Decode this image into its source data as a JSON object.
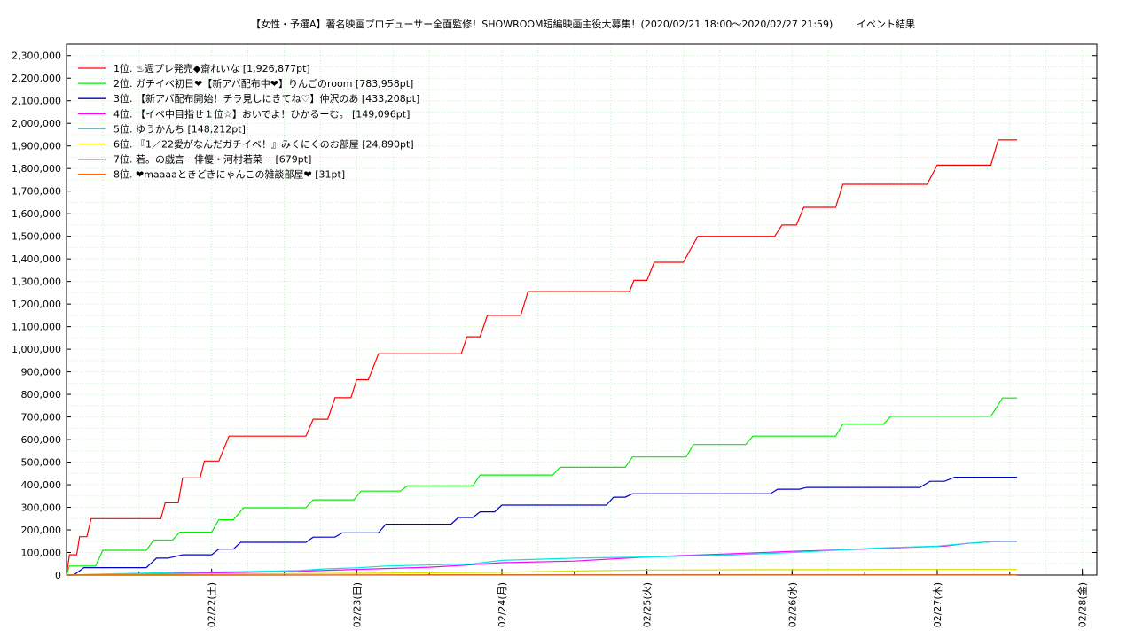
{
  "chart_data": {
    "type": "line",
    "title": "【女性・予選A】著名映画プロデューサー全面監修！SHOWROOM短編映画主役大募集！(2020/02/21 18:00〜2020/02/27 21:59)",
    "subtitle": "イベント結果",
    "x_range_days": [
      0,
      6.25
    ],
    "x_ticks": [
      {
        "pos": 1,
        "label": "02/22(土)"
      },
      {
        "pos": 2,
        "label": "02/23(日)"
      },
      {
        "pos": 3,
        "label": "02/24(月)"
      },
      {
        "pos": 4,
        "label": "02/25(火)"
      },
      {
        "pos": 5,
        "label": "02/26(水)"
      },
      {
        "pos": 6,
        "label": "02/27(木)"
      },
      {
        "pos": 7,
        "label": "02/28(金)"
      }
    ],
    "ylim": [
      0,
      2350000
    ],
    "y_ticks": [
      {
        "value": 0,
        "label": "0"
      },
      {
        "value": 100000,
        "label": "100,000"
      },
      {
        "value": 200000,
        "label": "200,000"
      },
      {
        "value": 300000,
        "label": "300,000"
      },
      {
        "value": 400000,
        "label": "400,000"
      },
      {
        "value": 500000,
        "label": "500,000"
      },
      {
        "value": 600000,
        "label": "600,000"
      },
      {
        "value": 700000,
        "label": "700,000"
      },
      {
        "value": 800000,
        "label": "800,000"
      },
      {
        "value": 900000,
        "label": "900,000"
      },
      {
        "value": 1000000,
        "label": "1,000,000"
      },
      {
        "value": 1100000,
        "label": "1,100,000"
      },
      {
        "value": 1200000,
        "label": "1,200,000"
      },
      {
        "value": 1300000,
        "label": "1,300,000"
      },
      {
        "value": 1400000,
        "label": "1,400,000"
      },
      {
        "value": 1500000,
        "label": "1,500,000"
      },
      {
        "value": 1600000,
        "label": "1,600,000"
      },
      {
        "value": 1700000,
        "label": "1,700,000"
      },
      {
        "value": 1800000,
        "label": "1,800,000"
      },
      {
        "value": 1900000,
        "label": "1,900,000"
      },
      {
        "value": 2000000,
        "label": "2,000,000"
      },
      {
        "value": 2100000,
        "label": "2,100,000"
      },
      {
        "value": 2200000,
        "label": "2,200,000"
      },
      {
        "value": 2300000,
        "label": "2,300,000"
      }
    ],
    "grid": true,
    "legend_position": "top-left",
    "series": [
      {
        "name": "1位. ♨週プレ発売◆齋れいな [1,926,877pt]",
        "color": "#ff0000",
        "points": [
          [
            0,
            0
          ],
          [
            0.02,
            90000
          ],
          [
            0.07,
            90000
          ],
          [
            0.09,
            170000
          ],
          [
            0.14,
            170000
          ],
          [
            0.17,
            250000
          ],
          [
            0.65,
            250000
          ],
          [
            0.68,
            320000
          ],
          [
            0.77,
            320000
          ],
          [
            0.8,
            430000
          ],
          [
            0.92,
            430000
          ],
          [
            0.95,
            505000
          ],
          [
            1.05,
            505000
          ],
          [
            1.12,
            615000
          ],
          [
            1.65,
            615000
          ],
          [
            1.7,
            690000
          ],
          [
            1.8,
            690000
          ],
          [
            1.85,
            785000
          ],
          [
            1.96,
            785000
          ],
          [
            2.0,
            865000
          ],
          [
            2.08,
            865000
          ],
          [
            2.15,
            980000
          ],
          [
            2.72,
            980000
          ],
          [
            2.76,
            1055000
          ],
          [
            2.85,
            1055000
          ],
          [
            2.9,
            1150000
          ],
          [
            3.13,
            1150000
          ],
          [
            3.18,
            1255000
          ],
          [
            3.88,
            1255000
          ],
          [
            3.91,
            1305000
          ],
          [
            4.0,
            1305000
          ],
          [
            4.05,
            1385000
          ],
          [
            4.25,
            1385000
          ],
          [
            4.35,
            1500000
          ],
          [
            4.88,
            1500000
          ],
          [
            4.93,
            1550000
          ],
          [
            5.03,
            1550000
          ],
          [
            5.08,
            1628000
          ],
          [
            5.3,
            1628000
          ],
          [
            5.35,
            1730000
          ],
          [
            5.93,
            1730000
          ],
          [
            6.0,
            1815000
          ],
          [
            6.37,
            1815000
          ],
          [
            6.42,
            1926877
          ],
          [
            6.55,
            1926877
          ]
        ]
      },
      {
        "name": "2位. ガチイベ初日❤【新アバ配布中❤】りんごのroom [783,958pt]",
        "color": "#00ee00",
        "points": [
          [
            0,
            0
          ],
          [
            0.02,
            40000
          ],
          [
            0.2,
            40000
          ],
          [
            0.25,
            110000
          ],
          [
            0.55,
            110000
          ],
          [
            0.6,
            155000
          ],
          [
            0.73,
            155000
          ],
          [
            0.78,
            190000
          ],
          [
            1.0,
            190000
          ],
          [
            1.05,
            245000
          ],
          [
            1.15,
            245000
          ],
          [
            1.22,
            298000
          ],
          [
            1.65,
            298000
          ],
          [
            1.7,
            333000
          ],
          [
            1.98,
            333000
          ],
          [
            2.03,
            372000
          ],
          [
            2.3,
            372000
          ],
          [
            2.35,
            395000
          ],
          [
            2.8,
            395000
          ],
          [
            2.85,
            443000
          ],
          [
            3.35,
            443000
          ],
          [
            3.4,
            477000
          ],
          [
            3.85,
            477000
          ],
          [
            3.9,
            523000
          ],
          [
            4.27,
            523000
          ],
          [
            4.32,
            578000
          ],
          [
            4.68,
            578000
          ],
          [
            4.73,
            615000
          ],
          [
            5.3,
            615000
          ],
          [
            5.35,
            668000
          ],
          [
            5.63,
            668000
          ],
          [
            5.68,
            703000
          ],
          [
            6.37,
            703000
          ],
          [
            6.45,
            783958
          ],
          [
            6.55,
            783958
          ]
        ]
      },
      {
        "name": "3位. 【新アバ配布開始！チラ見しにきてね♡】仲沢のあ [433,208pt]",
        "color": "#0000cc",
        "points": [
          [
            0,
            0
          ],
          [
            0.05,
            0
          ],
          [
            0.12,
            33000
          ],
          [
            0.55,
            33000
          ],
          [
            0.62,
            75000
          ],
          [
            0.7,
            75000
          ],
          [
            0.8,
            90000
          ],
          [
            1.0,
            90000
          ],
          [
            1.05,
            115000
          ],
          [
            1.15,
            115000
          ],
          [
            1.2,
            145000
          ],
          [
            1.65,
            145000
          ],
          [
            1.7,
            168000
          ],
          [
            1.85,
            168000
          ],
          [
            1.9,
            187000
          ],
          [
            2.15,
            187000
          ],
          [
            2.2,
            225000
          ],
          [
            2.65,
            225000
          ],
          [
            2.7,
            255000
          ],
          [
            2.8,
            255000
          ],
          [
            2.85,
            280000
          ],
          [
            2.95,
            280000
          ],
          [
            3.0,
            310000
          ],
          [
            3.72,
            310000
          ],
          [
            3.77,
            345000
          ],
          [
            3.85,
            345000
          ],
          [
            3.9,
            360000
          ],
          [
            4.85,
            360000
          ],
          [
            4.9,
            380000
          ],
          [
            5.05,
            380000
          ],
          [
            5.1,
            388000
          ],
          [
            5.88,
            388000
          ],
          [
            5.95,
            415000
          ],
          [
            6.05,
            415000
          ],
          [
            6.12,
            433208
          ],
          [
            6.55,
            433208
          ]
        ]
      },
      {
        "name": "4位. 【イベ中目指せ１位☆】おいでよ！ひかるーむ。 [149,096pt]",
        "color": "#ff00ff",
        "points": [
          [
            0,
            0
          ],
          [
            0.5,
            5000
          ],
          [
            1.0,
            10000
          ],
          [
            1.5,
            15000
          ],
          [
            2.0,
            25000
          ],
          [
            2.5,
            35000
          ],
          [
            2.7,
            42000
          ],
          [
            3.0,
            55000
          ],
          [
            3.5,
            62000
          ],
          [
            4.0,
            80000
          ],
          [
            4.3,
            88000
          ],
          [
            4.6,
            95000
          ],
          [
            5.0,
            105000
          ],
          [
            5.5,
            115000
          ],
          [
            5.9,
            125000
          ],
          [
            6.05,
            128000
          ],
          [
            6.2,
            140000
          ],
          [
            6.4,
            149096
          ],
          [
            6.55,
            149096
          ]
        ]
      },
      {
        "name": "5位. ゆうかんち [148,212pt]",
        "color": "#00e5e5",
        "points": [
          [
            0,
            0
          ],
          [
            0.3,
            5000
          ],
          [
            0.8,
            12000
          ],
          [
            1.2,
            15000
          ],
          [
            1.6,
            20000
          ],
          [
            1.8,
            28000
          ],
          [
            2.0,
            32000
          ],
          [
            2.2,
            40000
          ],
          [
            2.8,
            50000
          ],
          [
            3.0,
            65000
          ],
          [
            3.5,
            75000
          ],
          [
            4.0,
            80000
          ],
          [
            4.6,
            90000
          ],
          [
            5.0,
            100000
          ],
          [
            5.3,
            110000
          ],
          [
            5.6,
            120000
          ],
          [
            6.0,
            128000
          ],
          [
            6.2,
            140000
          ],
          [
            6.4,
            148212
          ],
          [
            6.55,
            148212
          ]
        ]
      },
      {
        "name": "6位. 『1／22愛がなんだガチイベ！』みくにくのお部屋 [24,890pt]",
        "color": "#dddd00",
        "points": [
          [
            0,
            0
          ],
          [
            0.5,
            3000
          ],
          [
            1.0,
            5000
          ],
          [
            2.0,
            8000
          ],
          [
            3.0,
            12000
          ],
          [
            3.5,
            18000
          ],
          [
            4.0,
            22000
          ],
          [
            5.0,
            24000
          ],
          [
            6.0,
            24890
          ],
          [
            6.55,
            24890
          ]
        ]
      },
      {
        "name": "7位. 若。の戯言ー俳優・河村若菜ー [679pt]",
        "color": "#000000",
        "points": [
          [
            0,
            0
          ],
          [
            3.0,
            400
          ],
          [
            6.0,
            679
          ],
          [
            6.55,
            679
          ]
        ]
      },
      {
        "name": "8位. ❤maaaaときどきにゃんこの雑談部屋❤ [31pt]",
        "color": "#ff6600",
        "points": [
          [
            0,
            0
          ],
          [
            6.55,
            31
          ]
        ]
      }
    ]
  }
}
